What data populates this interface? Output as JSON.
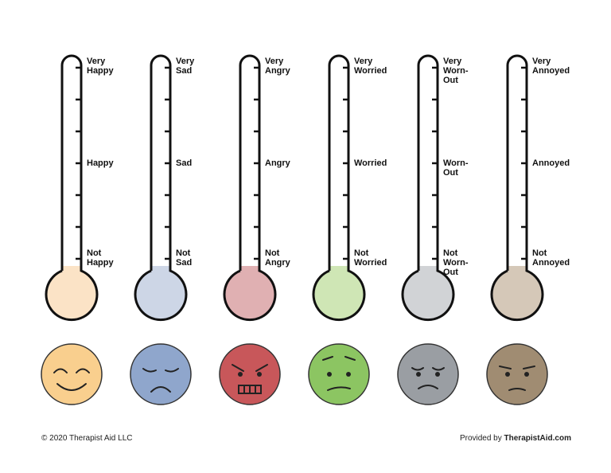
{
  "thermometers": [
    {
      "top": "Very Happy",
      "middle": "Happy",
      "bottom": "Not Happy",
      "bulb_color": "#fbe3c6",
      "face_color": "#f9cf8e"
    },
    {
      "top": "Very Sad",
      "middle": "Sad",
      "bottom": "Not Sad",
      "bulb_color": "#cdd6e6",
      "face_color": "#8fa6cc"
    },
    {
      "top": "Very Angry",
      "middle": "Angry",
      "bottom": "Not Angry",
      "bulb_color": "#e0b0b2",
      "face_color": "#c8575a"
    },
    {
      "top": "Very Worried",
      "middle": "Worried",
      "bottom": "Not Worried",
      "bulb_color": "#cfe6b5",
      "face_color": "#8cc562"
    },
    {
      "top": "Very Worn-Out",
      "middle": "Worn-Out",
      "bottom": "Not Worn-Out",
      "bulb_color": "#d1d3d6",
      "face_color": "#9a9ea3"
    },
    {
      "top": "Very Annoyed",
      "middle": "Annoyed",
      "bottom": "Not Annoyed",
      "bulb_color": "#d5c8b8",
      "face_color": "#a08c72"
    }
  ],
  "footer": {
    "copyright": "© 2020 Therapist Aid LLC",
    "provided_by": "Provided by",
    "site": "TherapistAid.com"
  }
}
